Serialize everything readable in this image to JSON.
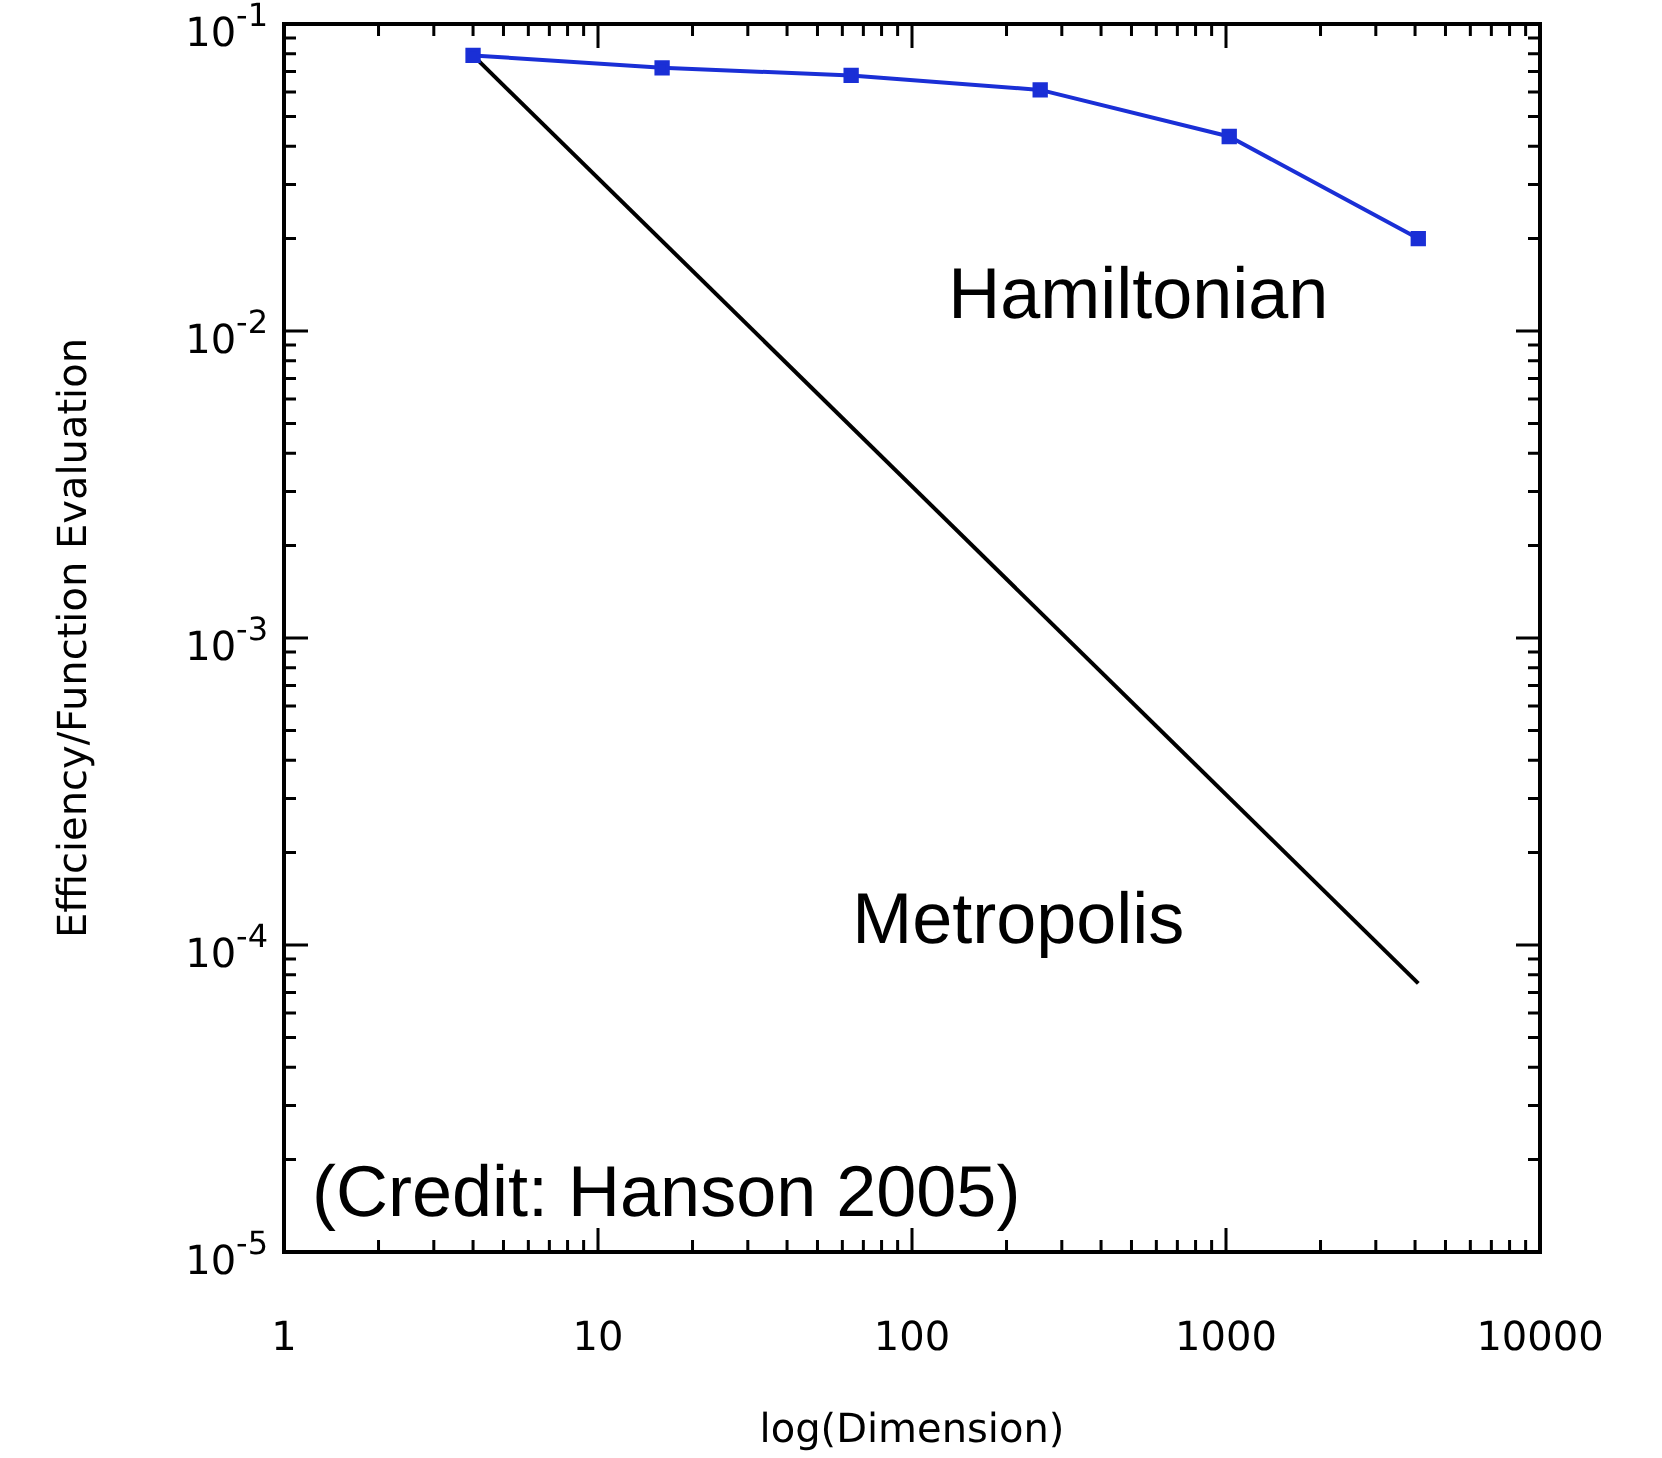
{
  "chart_data": {
    "type": "line",
    "xlabel": "log(Dimension)",
    "ylabel": "Efficiency/Function Evaluation",
    "log": "xy",
    "grid": false,
    "legend": false,
    "xlim": [
      1,
      10000
    ],
    "xticks": [
      1,
      10,
      100,
      1000,
      10000
    ],
    "ylim": [
      1e-05,
      0.1
    ],
    "yticks": [
      {
        "value": 1e-05,
        "label": "10$^{-5}$"
      },
      {
        "value": 0.0001,
        "label": "10$^{-4}$"
      },
      {
        "value": 0.001,
        "label": "10$^{-3}$"
      },
      {
        "value": 0.01,
        "label": "10$^{-2}$"
      },
      {
        "value": 0.1,
        "label": "10$^{-1}$"
      }
    ],
    "series": [
      {
        "name": "Hamiltonian",
        "color": "#1a2fd6",
        "marker": "square",
        "x": [
          4,
          16,
          64,
          256,
          1024,
          4096
        ],
        "values": [
          0.079,
          0.072,
          0.068,
          0.061,
          0.043,
          0.02
        ]
      },
      {
        "name": "Metropolis",
        "color": "#000000",
        "marker": "none",
        "x": [
          4,
          4096
        ],
        "values": [
          0.079,
          7.5e-05
        ]
      }
    ],
    "annotations": [
      "(Credit: Hanson 2005)"
    ]
  }
}
